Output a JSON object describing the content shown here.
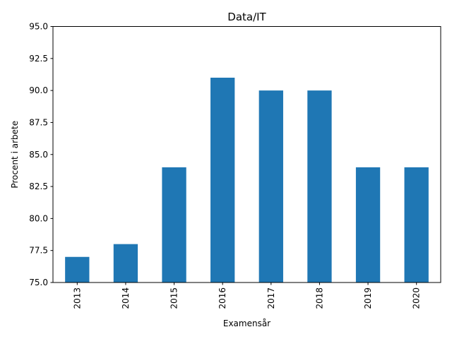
{
  "chart_data": {
    "type": "bar",
    "title": "Data/IT",
    "xlabel": "Examensår",
    "ylabel": "Procent i arbete",
    "categories": [
      "2013",
      "2014",
      "2015",
      "2016",
      "2017",
      "2018",
      "2019",
      "2020"
    ],
    "values": [
      77,
      78,
      84,
      91,
      90,
      90,
      84,
      84
    ],
    "ylim": [
      75,
      95
    ],
    "yticks": [
      "75.0",
      "77.5",
      "80.0",
      "82.5",
      "85.0",
      "87.5",
      "90.0",
      "92.5",
      "95.0"
    ],
    "grid": false,
    "legend": "none",
    "colors": {
      "bar": "#1f77b4",
      "axis": "#000000",
      "background": "#ffffff"
    }
  }
}
